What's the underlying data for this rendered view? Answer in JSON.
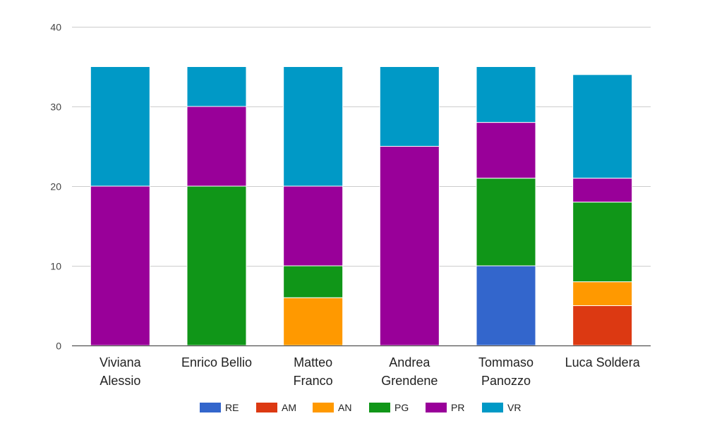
{
  "chart_data": {
    "type": "bar",
    "stacked": true,
    "categories": [
      [
        "Viviana",
        "Alessio"
      ],
      [
        "Enrico Bellio"
      ],
      [
        "Matteo",
        "Franco"
      ],
      [
        "Andrea",
        "Grendene"
      ],
      [
        "Tommaso",
        "Panozzo"
      ],
      [
        "Luca Soldera"
      ]
    ],
    "series": [
      {
        "name": "RE",
        "color": "#3366cc",
        "values": [
          0,
          0,
          0,
          0,
          10,
          0
        ]
      },
      {
        "name": "AM",
        "color": "#dc3912",
        "values": [
          0,
          0,
          0,
          0,
          0,
          5
        ]
      },
      {
        "name": "AN",
        "color": "#ff9900",
        "values": [
          0,
          0,
          6,
          0,
          0,
          3
        ]
      },
      {
        "name": "PG",
        "color": "#109618",
        "values": [
          0,
          20,
          4,
          0,
          11,
          10
        ]
      },
      {
        "name": "PR",
        "color": "#990099",
        "values": [
          20,
          10,
          10,
          25,
          7,
          3
        ]
      },
      {
        "name": "VR",
        "color": "#0099c6",
        "values": [
          15,
          5,
          15,
          10,
          7,
          13
        ]
      }
    ],
    "yticks": [
      0,
      10,
      20,
      30,
      40
    ],
    "ylim": [
      0,
      40
    ],
    "grid": true,
    "legend": "bottom"
  }
}
